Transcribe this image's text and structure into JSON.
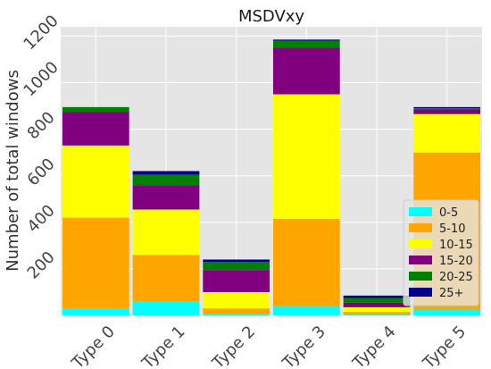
{
  "chart_data": {
    "type": "bar",
    "stacked": true,
    "title": "MSDVxy",
    "xlabel": "",
    "ylabel": "Number of total windows",
    "categories": [
      "Type 0",
      "Type 1",
      "Type 2",
      "Type 3",
      "Type 4",
      "Type 5"
    ],
    "yticks": [
      200,
      400,
      600,
      800,
      1000,
      1200
    ],
    "ylim": [
      0,
      1240
    ],
    "grid": true,
    "legend_position": "bottom-right",
    "series": [
      {
        "name": "0-5",
        "color": "#00ffff",
        "values": [
          30,
          60,
          5,
          40,
          3,
          25
        ]
      },
      {
        "name": "5-10",
        "color": "#ffa500",
        "values": [
          390,
          200,
          25,
          375,
          12,
          675
        ]
      },
      {
        "name": "10-15",
        "color": "#ffff00",
        "values": [
          310,
          195,
          70,
          535,
          20,
          165
        ]
      },
      {
        "name": "15-20",
        "color": "#800080",
        "values": [
          145,
          105,
          95,
          200,
          20,
          20
        ]
      },
      {
        "name": "20-25",
        "color": "#008000",
        "values": [
          20,
          45,
          35,
          30,
          20,
          5
        ]
      },
      {
        "name": "25+",
        "color": "#00008b",
        "values": [
          0,
          15,
          10,
          5,
          10,
          5
        ]
      }
    ]
  }
}
